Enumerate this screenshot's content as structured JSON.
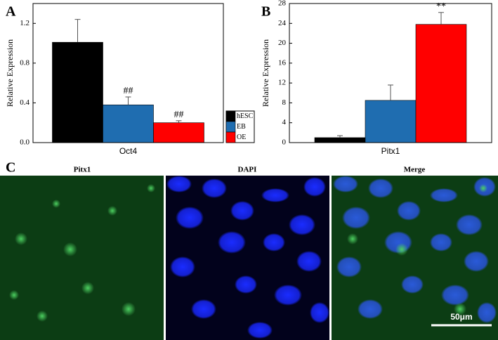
{
  "chart_data": [
    {
      "type": "bar",
      "label": "A",
      "y_label": "Relative Expression",
      "categories": [
        "Oct4"
      ],
      "ylim": [
        0,
        1.4
      ],
      "yticks": [
        {
          "value": 0,
          "label": "0.0"
        },
        {
          "value": 0.4,
          "label": "0.4"
        },
        {
          "value": 0.8,
          "label": "0.8"
        },
        {
          "value": 1.2,
          "label": "1.2"
        }
      ],
      "series": [
        {
          "name": "hESC",
          "color": "#000000",
          "values": [
            1.01
          ],
          "errors": [
            0.23
          ]
        },
        {
          "name": "EB",
          "color": "#1f6db0",
          "values": [
            0.38
          ],
          "errors": [
            0.08
          ],
          "annotation": "##"
        },
        {
          "name": "OE",
          "color": "#ff0000",
          "values": [
            0.2
          ],
          "errors": [
            0.02
          ],
          "annotation": "##"
        }
      ],
      "legend": "lower right"
    },
    {
      "type": "bar",
      "label": "B",
      "y_label": "Relative Expression",
      "categories": [
        "Pitx1"
      ],
      "ylim": [
        0,
        28
      ],
      "yticks": [
        0,
        4,
        8,
        12,
        16,
        20,
        24,
        28
      ],
      "series": [
        {
          "name": "hESC",
          "color": "#000000",
          "values": [
            1.0
          ],
          "errors": [
            0.4
          ]
        },
        {
          "name": "EB",
          "color": "#1f6db0",
          "values": [
            8.5
          ],
          "errors": [
            3.1
          ]
        },
        {
          "name": "OE",
          "color": "#ff0000",
          "values": [
            23.8
          ],
          "errors": [
            2.4
          ],
          "annotation": "**"
        }
      ]
    }
  ],
  "panel_c": {
    "label": "C",
    "images": [
      "Pitx1",
      "DAPI",
      "Merge"
    ],
    "scale_bar": "50μm"
  }
}
